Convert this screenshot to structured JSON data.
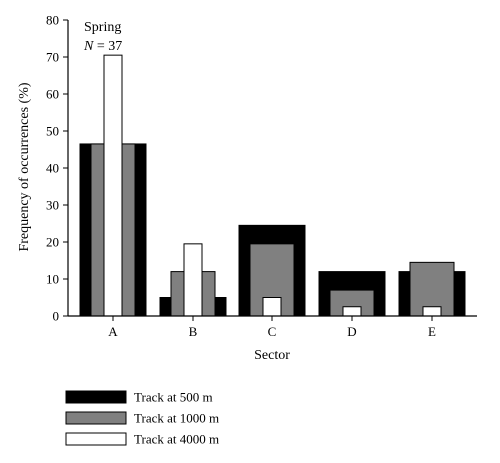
{
  "chart_data": {
    "type": "bar",
    "xlabel": "Sector",
    "ylabel": "Frequency of occurrences (%)",
    "ylim": [
      0,
      80
    ],
    "yticks": [
      0,
      10,
      20,
      30,
      40,
      50,
      60,
      70,
      80
    ],
    "categories": [
      "A",
      "B",
      "C",
      "D",
      "E"
    ],
    "series": [
      {
        "name": "Track at 500 m",
        "values": [
          46.5,
          5,
          24.5,
          12,
          12
        ],
        "color": "#000000"
      },
      {
        "name": "Track at 1000 m",
        "values": [
          46.5,
          12,
          19.5,
          7,
          14.5
        ],
        "color": "#808080"
      },
      {
        "name": "Track at 4000 m",
        "values": [
          70.5,
          19.5,
          5,
          2.5,
          2.5
        ],
        "color": "#ffffff"
      }
    ],
    "annotation": {
      "line1": "Spring",
      "n_symbol": "N",
      "n_text": " = 37"
    },
    "legend_position": "bottom-left",
    "grid": false
  }
}
